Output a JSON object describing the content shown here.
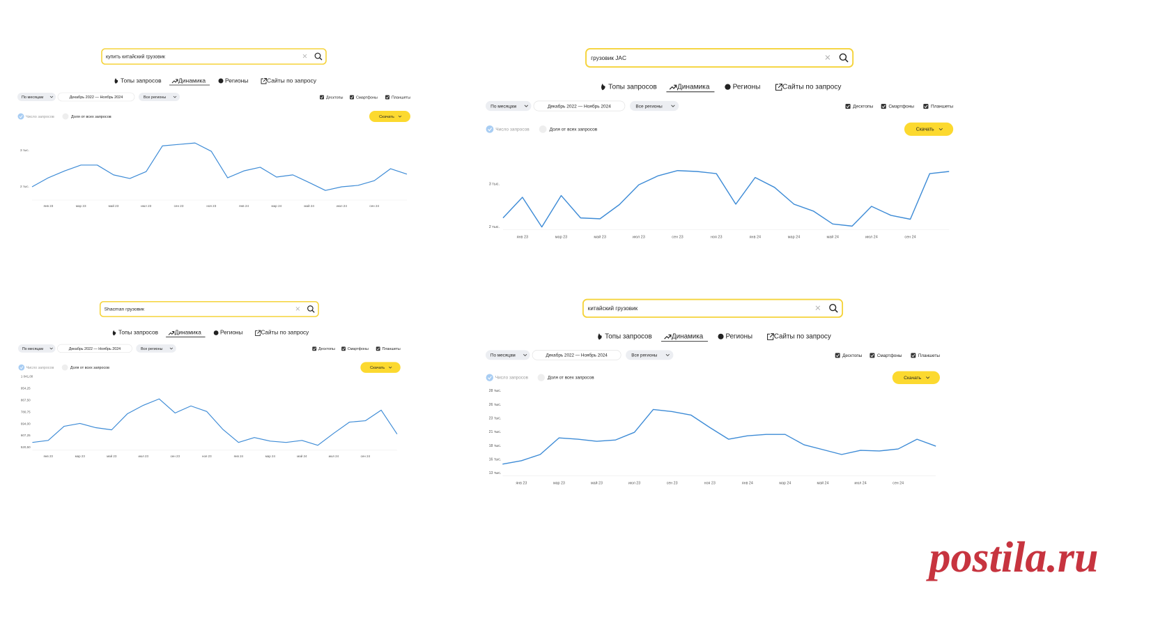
{
  "ui": {
    "tabs": [
      "Топы запросов",
      "Динамика",
      "Регионы",
      "Сайты по запросу"
    ],
    "period": "По месяцам",
    "range": "Декабрь 2022 — Ноябрь 2024",
    "regions": "Все регионы",
    "devices": [
      "Десктопы",
      "Смартфоны",
      "Планшеты"
    ],
    "metrics": [
      "Число запросов",
      "Доля от всех запросов"
    ],
    "download": "Скачать"
  },
  "queries": [
    "купить китайский грузовик",
    "грузовик JAC",
    "Shacman грузовик",
    "китайский грузовик"
  ],
  "chart_data": [
    {
      "type": "line",
      "categories": [
        null,
        "янв 23",
        null,
        "мар 23",
        null,
        "май 23",
        null,
        "июл 23",
        null,
        "сен 23",
        null,
        "ноя 23",
        null,
        "янв 24",
        null,
        "мар 24",
        null,
        "май 24",
        null,
        "июл 24",
        null,
        "сен 24",
        null,
        null
      ],
      "color": "#3d8bd6",
      "values": [
        2000,
        2250,
        2440,
        2600,
        2600,
        2330,
        2230,
        2420,
        3130,
        3170,
        3210,
        2980,
        2250,
        2440,
        2540,
        2270,
        2330,
        2120,
        1900,
        2000,
        2040,
        2170,
        2500,
        2350
      ],
      "ylim": [
        1635,
        3308
      ],
      "yticks": [
        {
          "value": 3000,
          "label": "3 тыс."
        },
        {
          "value": 2000,
          "label": "2 тыс."
        }
      ]
    },
    {
      "type": "line",
      "categories": [
        null,
        "янв 23",
        null,
        "мар 23",
        null,
        "май 23",
        null,
        "июл 23",
        null,
        "сен 23",
        null,
        "ноя 23",
        null,
        "янв 24",
        null,
        "мар 24",
        null,
        "май 24",
        null,
        "июл 24",
        null,
        "сен 24",
        null,
        null
      ],
      "color": "#3d8bd6",
      "values": [
        2210,
        2690,
        2000,
        2730,
        2210,
        2190,
        2520,
        2980,
        3190,
        3310,
        3290,
        3240,
        2530,
        3150,
        2920,
        2530,
        2370,
        2070,
        2020,
        2480,
        2270,
        2180,
        3240,
        3290
      ],
      "ylim": [
        1940,
        3540
      ],
      "yticks": [
        {
          "value": 3000,
          "label": "3 тыс."
        },
        {
          "value": 2000,
          "label": "2 тыс."
        }
      ]
    },
    {
      "type": "line",
      "categories": [
        null,
        "янв 23",
        null,
        "мар 23",
        null,
        "май 23",
        null,
        "июл 23",
        null,
        "сен 23",
        null,
        "ноя 23",
        null,
        "янв 24",
        null,
        "мар 24",
        null,
        "май 24",
        null,
        "июл 24",
        null,
        "сен 24",
        null,
        null
      ],
      "color": "#3d8bd6",
      "values": [
        557,
        572,
        676,
        697,
        666,
        650,
        769,
        831,
        878,
        774,
        826,
        785,
        655,
        557,
        593,
        567,
        557,
        572,
        536,
        624,
        707,
        717,
        795,
        619
      ],
      "ylim": [
        500,
        1050
      ],
      "yticks": [
        {
          "value": 1041,
          "label": "1 041,00"
        },
        {
          "value": 954.25,
          "label": "954,25"
        },
        {
          "value": 867.5,
          "label": "867,50"
        },
        {
          "value": 780.75,
          "label": "780,75"
        },
        {
          "value": 694,
          "label": "694,00"
        },
        {
          "value": 607.25,
          "label": "607,25"
        },
        {
          "value": 520.5,
          "label": "520,50"
        }
      ]
    },
    {
      "type": "line",
      "categories": [
        null,
        "янв 23",
        null,
        "мар 23",
        null,
        "май 23",
        null,
        "июл 23",
        null,
        "сен 23",
        null,
        "ноя 23",
        null,
        "янв 24",
        null,
        "мар 24",
        null,
        "май 24",
        null,
        "июл 24",
        null,
        "сен 24",
        null,
        null
      ],
      "color": "#3d8bd6",
      "values": [
        14640,
        15270,
        16400,
        19430,
        19180,
        18800,
        19050,
        20440,
        24600,
        24220,
        23590,
        21320,
        19180,
        19810,
        20060,
        20060,
        18170,
        17290,
        16400,
        17160,
        17040,
        17410,
        19180,
        17920
      ],
      "ylim": [
        12500,
        28500
      ],
      "yticks": [
        {
          "value": 28000,
          "label": "28 тыс."
        },
        {
          "value": 25500,
          "label": "26 тыс."
        },
        {
          "value": 23000,
          "label": "23 тыс."
        },
        {
          "value": 20500,
          "label": "21 тыс."
        },
        {
          "value": 18000,
          "label": "18 тыс."
        },
        {
          "value": 15500,
          "label": "16 тыс."
        },
        {
          "value": 13000,
          "label": "13 тыс."
        }
      ]
    }
  ],
  "watermark": "postila.ru"
}
